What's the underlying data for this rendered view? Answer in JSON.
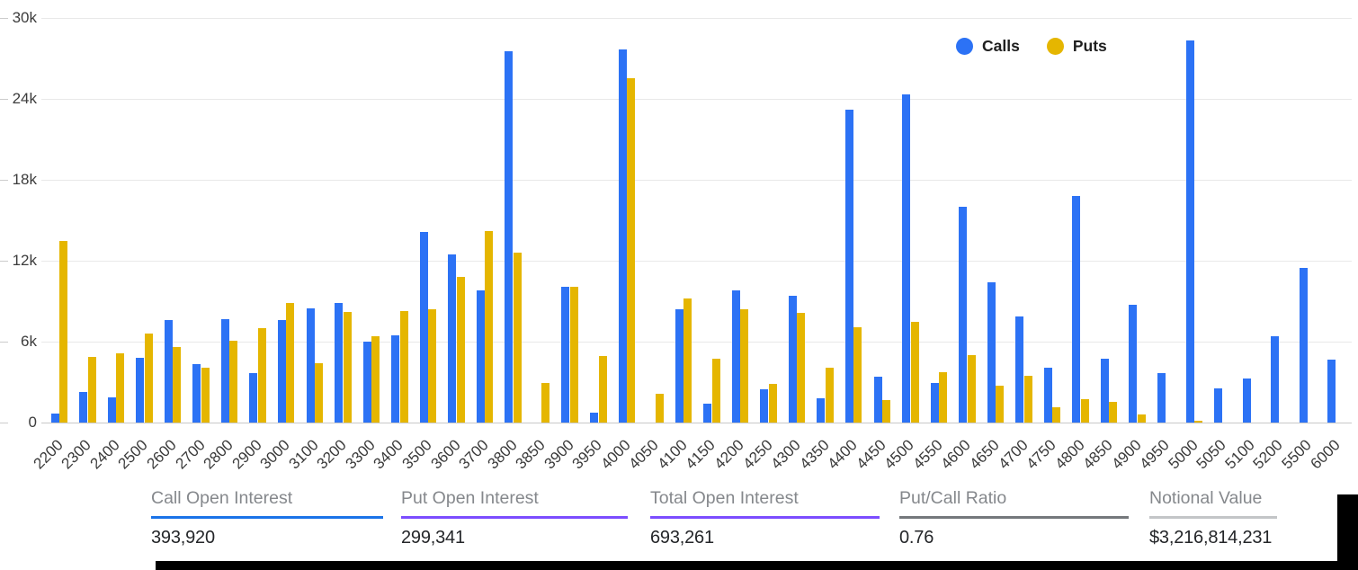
{
  "legend": {
    "items": [
      {
        "label": "Calls",
        "color": "#2c72f5"
      },
      {
        "label": "Puts",
        "color": "#e5b600"
      }
    ]
  },
  "chart_data": {
    "type": "bar",
    "title": "",
    "xlabel": "",
    "ylabel": "",
    "ylim": [
      0,
      30000
    ],
    "yticks": [
      "0",
      "6k",
      "12k",
      "18k",
      "24k",
      "30k"
    ],
    "grid": true,
    "legend_position": "top-right",
    "categories": [
      "2200",
      "2300",
      "2400",
      "2500",
      "2600",
      "2700",
      "2800",
      "2900",
      "3000",
      "3100",
      "3200",
      "3300",
      "3400",
      "3500",
      "3600",
      "3700",
      "3800",
      "3850",
      "3900",
      "3950",
      "4000",
      "4050",
      "4100",
      "4150",
      "4200",
      "4250",
      "4300",
      "4350",
      "4400",
      "4450",
      "4500",
      "4550",
      "4600",
      "4650",
      "4700",
      "4750",
      "4800",
      "4850",
      "4900",
      "4950",
      "5000",
      "5050",
      "5100",
      "5200",
      "5500",
      "6000"
    ],
    "series": [
      {
        "name": "Calls",
        "color": "#2c72f5",
        "values": [
          700,
          2280,
          1880,
          4780,
          7590,
          4340,
          7640,
          3690,
          7590,
          8440,
          8890,
          6000,
          6480,
          14120,
          12460,
          9780,
          27520,
          0,
          10100,
          720,
          27650,
          0,
          8400,
          1390,
          9780,
          2460,
          9380,
          1830,
          23230,
          3400,
          24340,
          2950,
          16010,
          10390,
          7860,
          4070,
          16800,
          4760,
          8760,
          3640,
          28360,
          2530,
          3240,
          6430,
          11500,
          4690
        ]
      },
      {
        "name": "Puts",
        "color": "#e5b600",
        "values": [
          13450,
          4900,
          5140,
          6570,
          5580,
          4070,
          6080,
          6970,
          8890,
          4380,
          8170,
          6430,
          8260,
          8420,
          10770,
          14180,
          12580,
          2960,
          10100,
          4960,
          25550,
          2120,
          9200,
          4740,
          8420,
          2900,
          8150,
          4070,
          7080,
          1680,
          7480,
          3750,
          5030,
          2750,
          3460,
          1120,
          1740,
          1520,
          620,
          0,
          150,
          0,
          0,
          0,
          0,
          0
        ]
      }
    ]
  },
  "stats": [
    {
      "label": "Call Open Interest",
      "value": "393,920",
      "line_color": "#1a73e8"
    },
    {
      "label": "Put Open Interest",
      "value": "299,341",
      "line_color": "#7c4dff"
    },
    {
      "label": "Total Open Interest",
      "value": "693,261",
      "line_color": "#7c4dff"
    },
    {
      "label": "Put/Call Ratio",
      "value": "0.76",
      "line_color": "#75787c"
    },
    {
      "label": "Notional Value",
      "value": "$3,216,814,231",
      "line_color": "#c3c5c7"
    }
  ]
}
